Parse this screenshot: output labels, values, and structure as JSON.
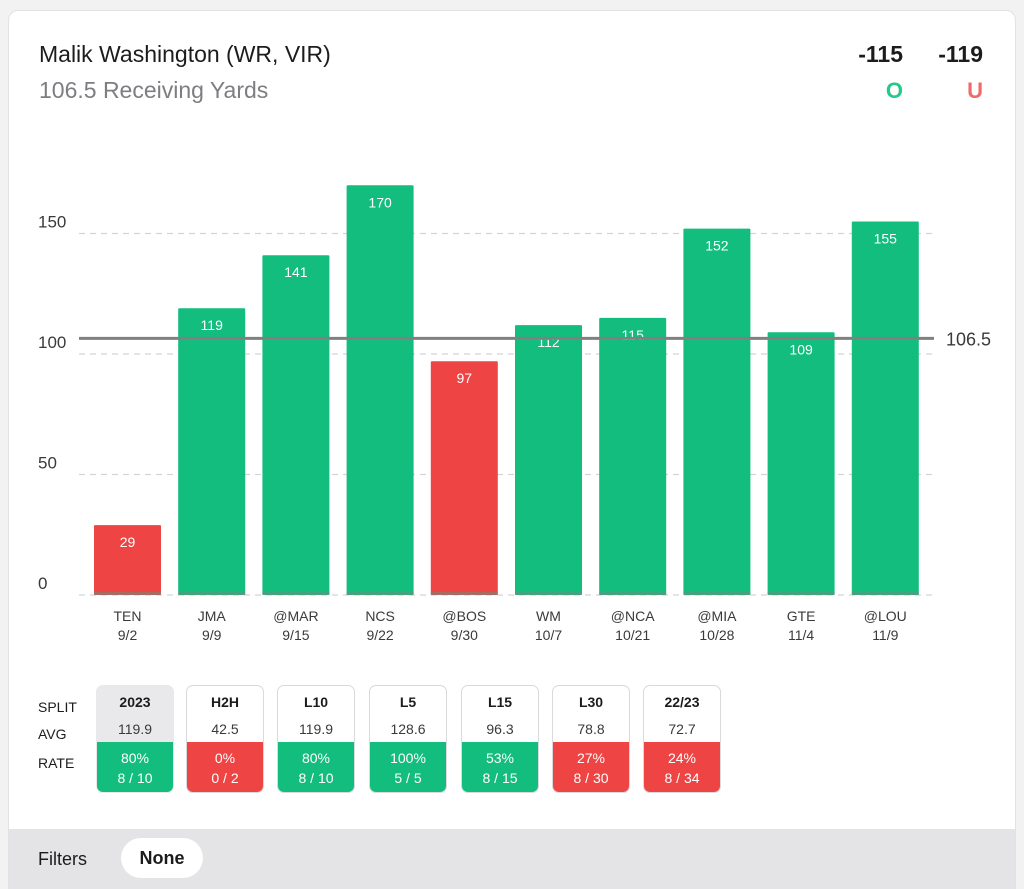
{
  "header": {
    "player": "Malik Washington (WR, VIR)",
    "prop": "106.5 Receiving Yards",
    "over_odds": "-115",
    "under_odds": "-119",
    "over_label": "O",
    "under_label": "U"
  },
  "colors": {
    "over": "#12bd7e",
    "under": "#ef4444",
    "line": "#808080"
  },
  "chart_data": {
    "type": "bar",
    "title": "106.5 Receiving Yards",
    "categories": [
      "TEN",
      "JMA",
      "@MAR",
      "NCS",
      "@BOS",
      "WM",
      "@NCA",
      "@MIA",
      "GTE",
      "@LOU"
    ],
    "dates": [
      "9/2",
      "9/9",
      "9/15",
      "9/22",
      "9/30",
      "10/7",
      "10/21",
      "10/28",
      "11/4",
      "11/9"
    ],
    "values": [
      29,
      119,
      141,
      170,
      97,
      112,
      115,
      152,
      109,
      155
    ],
    "line": 106.5,
    "line_label": "106.5",
    "y_ticks": [
      0,
      50,
      100,
      150
    ],
    "ylim": [
      0,
      170
    ],
    "xlabel": "",
    "ylabel": "",
    "grid": true
  },
  "splits": {
    "row_labels": {
      "split": "SPLIT",
      "avg": "AVG",
      "rate": "RATE"
    },
    "columns": [
      {
        "name": "2023",
        "avg": "119.9",
        "pct": "80%",
        "record": "8 / 10",
        "result": "over",
        "active": true
      },
      {
        "name": "H2H",
        "avg": "42.5",
        "pct": "0%",
        "record": "0 / 2",
        "result": "under",
        "active": false
      },
      {
        "name": "L10",
        "avg": "119.9",
        "pct": "80%",
        "record": "8 / 10",
        "result": "over",
        "active": false
      },
      {
        "name": "L5",
        "avg": "128.6",
        "pct": "100%",
        "record": "5 / 5",
        "result": "over",
        "active": false
      },
      {
        "name": "L15",
        "avg": "96.3",
        "pct": "53%",
        "record": "8 / 15",
        "result": "over",
        "active": false
      },
      {
        "name": "L30",
        "avg": "78.8",
        "pct": "27%",
        "record": "8 / 30",
        "result": "under",
        "active": false
      },
      {
        "name": "22/23",
        "avg": "72.7",
        "pct": "24%",
        "record": "8 / 34",
        "result": "under",
        "active": false
      }
    ]
  },
  "filters": {
    "label": "Filters",
    "value": "None"
  }
}
